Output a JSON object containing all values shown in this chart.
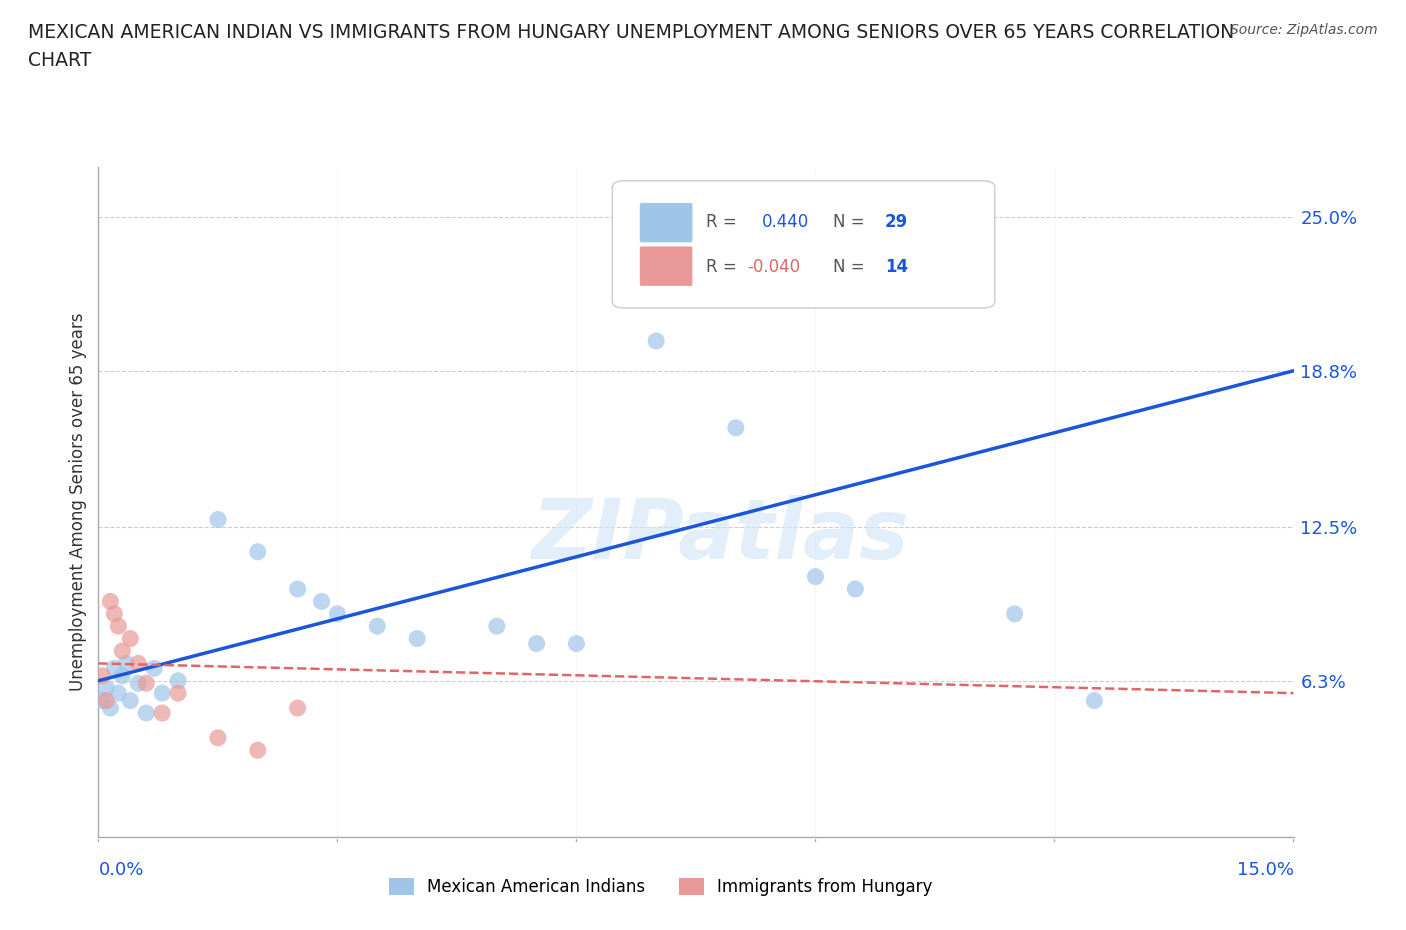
{
  "title_line1": "MEXICAN AMERICAN INDIAN VS IMMIGRANTS FROM HUNGARY UNEMPLOYMENT AMONG SENIORS OVER 65 YEARS CORRELATION",
  "title_line2": "CHART",
  "source": "Source: ZipAtlas.com",
  "ylabel": "Unemployment Among Seniors over 65 years",
  "ytick_values": [
    6.3,
    12.5,
    18.8,
    25.0
  ],
  "xlim": [
    0.0,
    15.0
  ],
  "ylim": [
    0.0,
    27.0
  ],
  "legend1_label": "Mexican American Indians",
  "legend2_label": "Immigrants from Hungary",
  "R1": "0.440",
  "N1": "29",
  "R2": "-0.040",
  "N2": "14",
  "blue_color": "#9fc5e8",
  "pink_color": "#ea9999",
  "blue_line_color": "#1a56db",
  "pink_line_color": "#e06666",
  "watermark_text": "ZIPatlas",
  "blue_dots_x": [
    0.05,
    0.1,
    0.15,
    0.2,
    0.25,
    0.3,
    0.35,
    0.4,
    0.5,
    0.6,
    0.7,
    0.8,
    1.0,
    1.5,
    2.0,
    2.5,
    2.8,
    3.0,
    3.5,
    4.0,
    5.0,
    5.5,
    6.0,
    7.0,
    8.0,
    9.0,
    9.5,
    11.5,
    12.5
  ],
  "blue_dots_y": [
    5.5,
    6.0,
    5.2,
    6.8,
    5.8,
    6.5,
    7.0,
    5.5,
    6.2,
    5.0,
    6.8,
    5.8,
    6.3,
    12.8,
    11.5,
    10.0,
    9.5,
    9.0,
    8.5,
    8.0,
    8.5,
    7.8,
    7.8,
    20.0,
    16.5,
    10.5,
    10.0,
    9.0,
    5.5
  ],
  "pink_dots_x": [
    0.05,
    0.1,
    0.15,
    0.2,
    0.25,
    0.3,
    0.4,
    0.5,
    0.6,
    0.8,
    1.0,
    1.5,
    2.0,
    2.5
  ],
  "pink_dots_y": [
    6.5,
    5.5,
    9.5,
    9.0,
    8.5,
    7.5,
    8.0,
    7.0,
    6.2,
    5.0,
    5.8,
    4.0,
    3.5,
    5.2
  ],
  "blue_line_x0": 0.0,
  "blue_line_y0": 6.3,
  "blue_line_x1": 15.0,
  "blue_line_y1": 18.8,
  "pink_line_x0": 0.0,
  "pink_line_y0": 7.0,
  "pink_line_x1": 15.0,
  "pink_line_y1": 5.8,
  "xtick_positions": [
    0.0,
    3.0,
    6.0,
    9.0,
    12.0,
    15.0
  ]
}
